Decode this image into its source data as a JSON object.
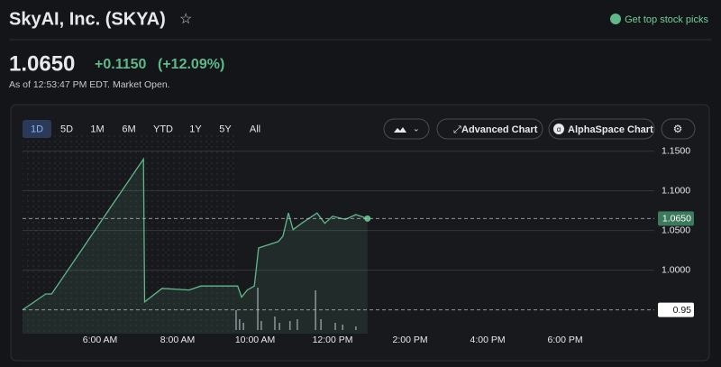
{
  "header": {
    "title": "SkyAI, Inc. (SKYA)",
    "promo": "Get top stock picks"
  },
  "quote": {
    "price": "1.0650",
    "change": "+0.1150",
    "change_pct": "(+12.09%)",
    "timestamp": "As of 12:53:47 PM EDT. Market Open."
  },
  "toolbar": {
    "ranges": [
      "1D",
      "5D",
      "1M",
      "6M",
      "YTD",
      "1Y",
      "5Y",
      "All"
    ],
    "buttons": [
      "Advanced Chart",
      "AlphaSpace Chart"
    ]
  },
  "chart_data": {
    "type": "line",
    "color": "#5fb88a",
    "x": [
      4,
      4.6,
      4.75,
      7.12,
      7.15,
      7.6,
      8.3,
      8.6,
      9.55,
      9.65,
      9.8,
      9.98,
      10.09,
      10.6,
      10.72,
      10.86,
      10.98,
      11.2,
      11.6,
      11.8,
      12.0,
      12.33,
      12.6,
      12.9
    ],
    "values": [
      0.95,
      0.97,
      0.97,
      1.14,
      0.96,
      0.977,
      0.975,
      0.98,
      0.98,
      0.966,
      0.975,
      0.98,
      1.028,
      1.036,
      1.043,
      1.072,
      1.051,
      1.059,
      1.072,
      1.059,
      1.068,
      1.064,
      1.07,
      1.065
    ],
    "xlim": [
      4,
      20.3
    ],
    "xticks": [
      {
        "value": 6,
        "label": "6:00 AM"
      },
      {
        "value": 8,
        "label": "8:00 AM"
      },
      {
        "value": 10,
        "label": "10:00 AM"
      },
      {
        "value": 12,
        "label": "12:00 PM"
      },
      {
        "value": 14,
        "label": "2:00 PM"
      },
      {
        "value": 16,
        "label": "4:00 PM"
      },
      {
        "value": 18,
        "label": "6:00 PM"
      }
    ],
    "ylim": [
      0.92,
      1.17
    ],
    "yticks": [
      {
        "value": 1.15,
        "label": "1.1500"
      },
      {
        "value": 1.1,
        "label": "1.1000"
      },
      {
        "value": 1.05,
        "label": "1.0500"
      },
      {
        "value": 1,
        "label": "1.0000"
      }
    ],
    "grid": true,
    "premarket": [
      4,
      9.5
    ],
    "markers": [
      {
        "value": 1.065,
        "label": "1.0650",
        "color": "#3b7a5c"
      },
      {
        "value": 0.95,
        "label": "0.95",
        "color": "#ffffff"
      }
    ],
    "volume": {
      "x": [
        9.51,
        9.6,
        9.7,
        10.07,
        10.16,
        10.51,
        10.63,
        10.9,
        11.09,
        11.56,
        11.7,
        12.07,
        12.26,
        12.6
      ],
      "values": [
        22,
        12,
        8,
        47,
        10,
        15,
        8,
        10,
        12,
        44,
        12,
        8,
        6,
        4
      ],
      "ylim": [
        0,
        50
      ],
      "color": "#8a8d93"
    }
  }
}
